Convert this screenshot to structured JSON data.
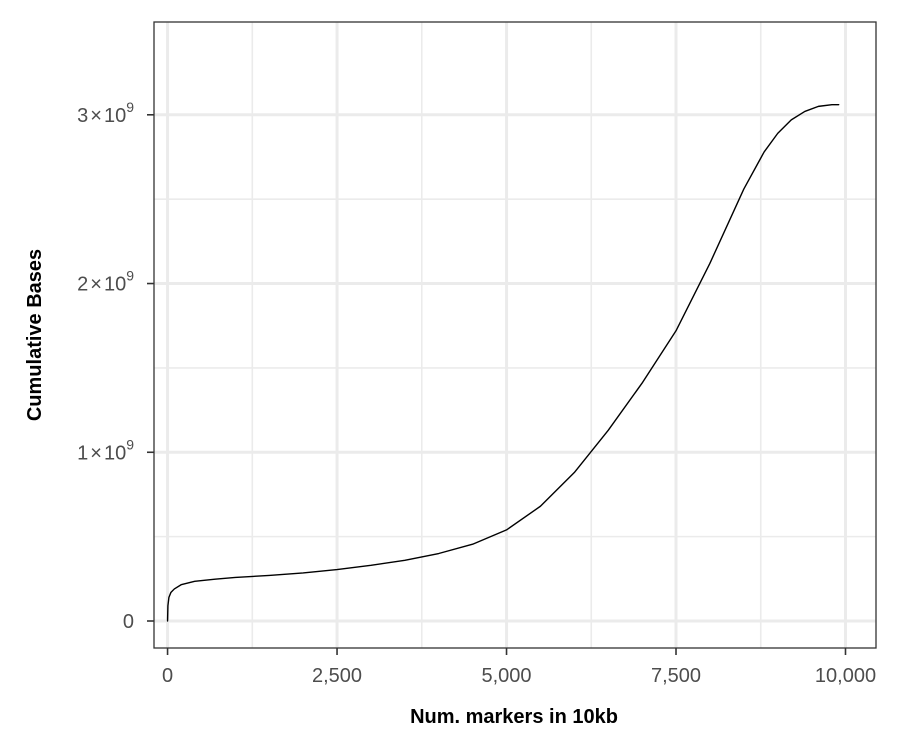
{
  "chart_data": {
    "type": "line",
    "title": "",
    "xlabel": "Num. markers in 10kb",
    "ylabel": "Cumulative Bases",
    "xlim": [
      -200,
      10450
    ],
    "ylim": [
      -160000000,
      3550000000
    ],
    "grid": true,
    "legend": "none",
    "x_ticks": [
      {
        "value": 0,
        "label": "0"
      },
      {
        "value": 2500,
        "label": "2,500"
      },
      {
        "value": 5000,
        "label": "5,000"
      },
      {
        "value": 7500,
        "label": "7,500"
      },
      {
        "value": 10000,
        "label": "10,000"
      }
    ],
    "x_minor_breaks": [
      1250,
      3750,
      6250,
      8750
    ],
    "y_ticks": [
      {
        "value": 0,
        "mantissa": "0",
        "times": "",
        "base": "",
        "exponent": ""
      },
      {
        "value": 1000000000,
        "mantissa": "1",
        "times": "×",
        "base": "10",
        "exponent": "9"
      },
      {
        "value": 2000000000,
        "mantissa": "2",
        "times": "×",
        "base": "10",
        "exponent": "9"
      },
      {
        "value": 3000000000,
        "mantissa": "3",
        "times": "×",
        "base": "10",
        "exponent": "9"
      }
    ],
    "y_minor_breaks": [
      500000000,
      1500000000,
      2500000000
    ],
    "series": [
      {
        "color": "#000000",
        "x": [
          0,
          5,
          20,
          50,
          100,
          200,
          400,
          700,
          1000,
          1500,
          2000,
          2500,
          3000,
          3500,
          4000,
          4500,
          5000,
          5500,
          6000,
          6500,
          7000,
          7500,
          8000,
          8500,
          8800,
          9000,
          9200,
          9400,
          9600,
          9800,
          9900
        ],
        "y": [
          0,
          90000000,
          140000000,
          170000000,
          190000000,
          215000000,
          235000000,
          248000000,
          258000000,
          270000000,
          285000000,
          305000000,
          330000000,
          360000000,
          400000000,
          455000000,
          540000000,
          680000000,
          880000000,
          1130000000,
          1410000000,
          1720000000,
          2120000000,
          2560000000,
          2780000000,
          2890000000,
          2970000000,
          3020000000,
          3050000000,
          3060000000,
          3060000000
        ]
      }
    ]
  },
  "colors": {
    "panel_border": "#333333",
    "grid": "#ebebeb",
    "tick": "#333333",
    "line": "#000000"
  }
}
